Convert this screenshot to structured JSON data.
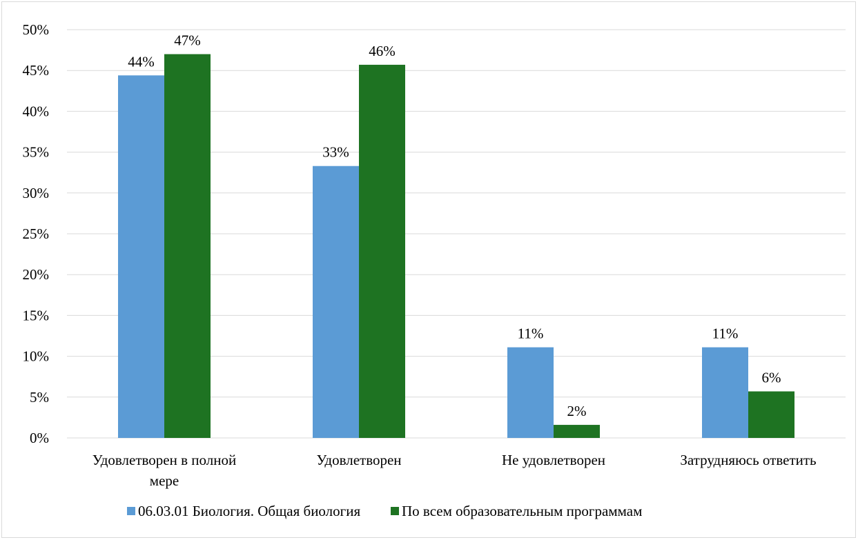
{
  "chart_data": {
    "type": "bar",
    "categories": [
      [
        "Удовлетворен в полной",
        "мере"
      ],
      [
        "Удовлетворен"
      ],
      [
        "Не удовлетворен"
      ],
      [
        "Затрудняюсь ответить"
      ]
    ],
    "series": [
      {
        "name": "06.03.01 Биология. Общая биология",
        "color": "#5b9bd5",
        "values": [
          44.4,
          33.3,
          11.1,
          11.1
        ],
        "labels": [
          "44%",
          "33%",
          "11%",
          "11%"
        ]
      },
      {
        "name": "По всем образовательным программам",
        "color": "#1e7322",
        "values": [
          47.0,
          45.7,
          1.6,
          5.7
        ],
        "labels": [
          "47%",
          "46%",
          "2%",
          "6%"
        ]
      }
    ],
    "ylim": [
      0,
      50
    ],
    "yticks": [
      "0%",
      "5%",
      "10%",
      "15%",
      "20%",
      "25%",
      "30%",
      "35%",
      "40%",
      "45%",
      "50%"
    ],
    "grid": true,
    "legend_position": "bottom",
    "title": "",
    "xlabel": "",
    "ylabel": ""
  }
}
